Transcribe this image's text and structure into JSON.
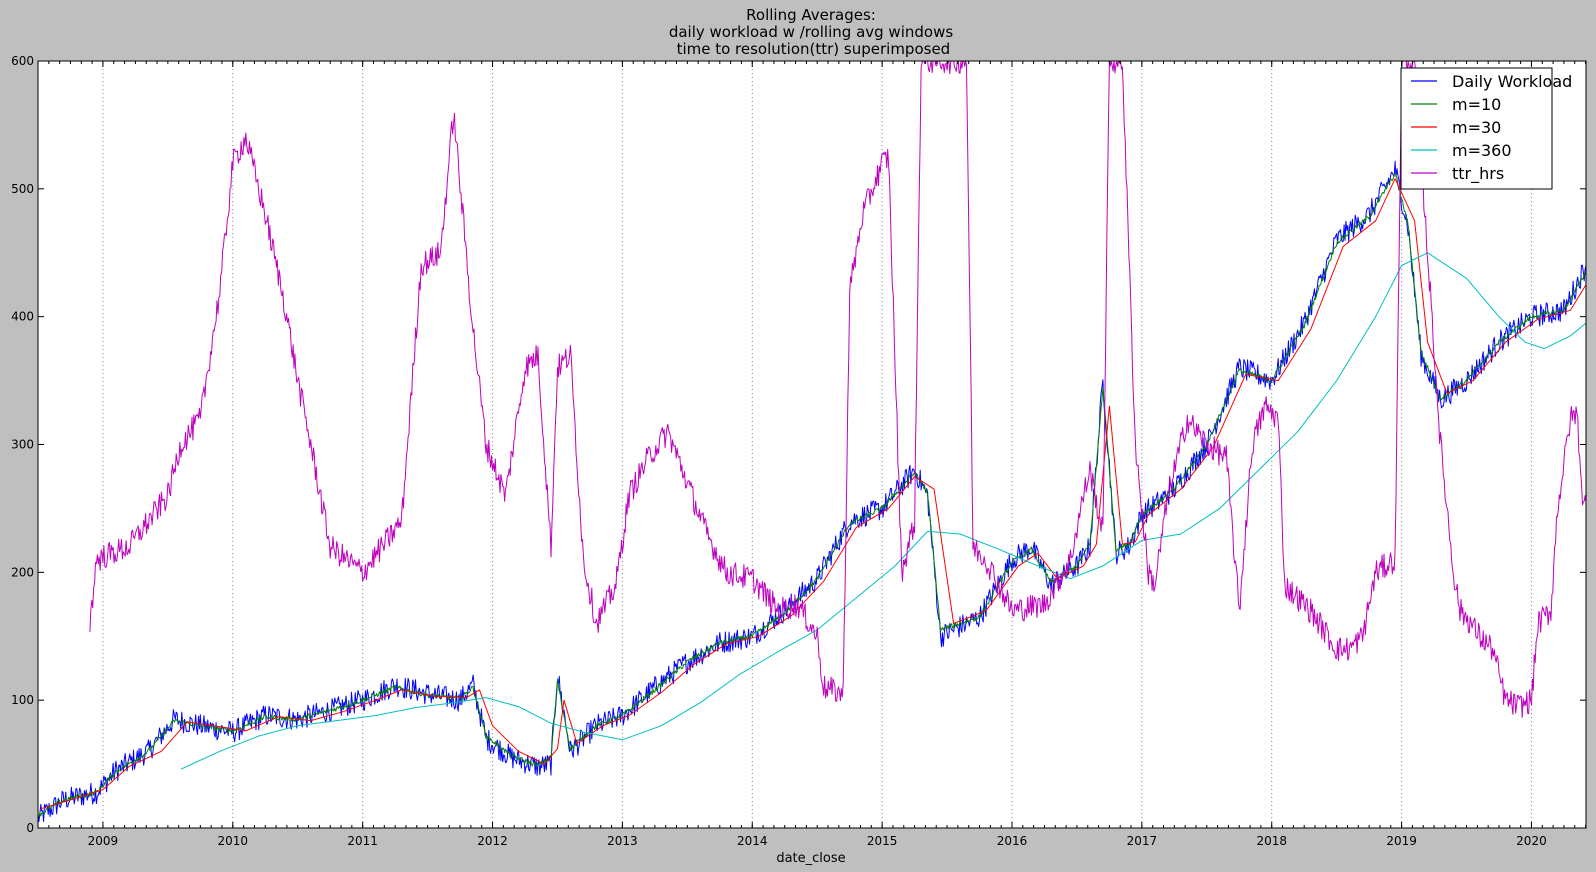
{
  "chart_data": {
    "type": "line",
    "title_lines": [
      "Rolling Averages:",
      "daily workload w /rolling avg windows",
      " time to resolution(ttr) superimposed"
    ],
    "xlabel": "date_close",
    "ylabel": "",
    "xlim": [
      2008.5,
      2020.42
    ],
    "ylim": [
      0,
      600
    ],
    "x_ticks": [
      2009,
      2010,
      2011,
      2012,
      2013,
      2014,
      2015,
      2016,
      2017,
      2018,
      2019,
      2020
    ],
    "x_tick_labels": [
      "2009",
      "2010",
      "2011",
      "2012",
      "2013",
      "2014",
      "2015",
      "2016",
      "2017",
      "2018",
      "2019",
      "2020"
    ],
    "y_ticks": [
      0,
      100,
      200,
      300,
      400,
      500,
      600
    ],
    "y_tick_labels": [
      "0",
      "100",
      "200",
      "300",
      "400",
      "500",
      "600"
    ],
    "grid": "vertical-dotted",
    "legend_position": "top-right",
    "series": [
      {
        "name": "Daily Workload",
        "color": "#0000ff",
        "noise": 9,
        "x": [
          2008.5,
          2008.7,
          2008.95,
          2009.1,
          2009.35,
          2009.55,
          2009.75,
          2010.0,
          2010.25,
          2010.5,
          2010.75,
          2011.0,
          2011.25,
          2011.5,
          2011.75,
          2011.85,
          2011.95,
          2012.15,
          2012.35,
          2012.45,
          2012.5,
          2012.6,
          2012.8,
          2013.0,
          2013.25,
          2013.5,
          2013.75,
          2014.0,
          2014.25,
          2014.5,
          2014.75,
          2015.0,
          2015.25,
          2015.35,
          2015.45,
          2015.75,
          2016.0,
          2016.15,
          2016.3,
          2016.5,
          2016.6,
          2016.7,
          2016.8,
          2016.9,
          2017.0,
          2017.25,
          2017.5,
          2017.75,
          2018.0,
          2018.25,
          2018.5,
          2018.75,
          2018.95,
          2019.05,
          2019.15,
          2019.3,
          2019.5,
          2019.75,
          2020.0,
          2020.25,
          2020.42
        ],
        "y": [
          8,
          22,
          28,
          45,
          60,
          85,
          80,
          75,
          88,
          85,
          92,
          100,
          112,
          105,
          100,
          112,
          70,
          55,
          48,
          50,
          120,
          60,
          80,
          88,
          110,
          130,
          145,
          150,
          170,
          195,
          240,
          250,
          280,
          260,
          150,
          165,
          210,
          220,
          190,
          205,
          220,
          350,
          215,
          220,
          245,
          265,
          300,
          360,
          350,
          395,
          460,
          480,
          515,
          470,
          370,
          335,
          350,
          380,
          400,
          405,
          440
        ]
      },
      {
        "name": "m=10",
        "color": "#008000",
        "noise": 2,
        "x": [
          2008.5,
          2008.7,
          2008.95,
          2009.1,
          2009.35,
          2009.55,
          2009.75,
          2010.0,
          2010.25,
          2010.5,
          2010.75,
          2011.0,
          2011.25,
          2011.5,
          2011.75,
          2011.85,
          2011.95,
          2012.15,
          2012.35,
          2012.45,
          2012.5,
          2012.6,
          2012.8,
          2013.0,
          2013.25,
          2013.5,
          2013.75,
          2014.0,
          2014.25,
          2014.5,
          2014.75,
          2015.0,
          2015.25,
          2015.35,
          2015.45,
          2015.75,
          2016.0,
          2016.15,
          2016.3,
          2016.5,
          2016.6,
          2016.7,
          2016.8,
          2016.9,
          2017.0,
          2017.25,
          2017.5,
          2017.75,
          2018.0,
          2018.25,
          2018.5,
          2018.75,
          2018.95,
          2019.05,
          2019.15,
          2019.3,
          2019.5,
          2019.75,
          2020.0,
          2020.25,
          2020.42
        ],
        "y": [
          10,
          22,
          28,
          44,
          60,
          84,
          80,
          76,
          87,
          85,
          92,
          100,
          110,
          104,
          101,
          110,
          72,
          56,
          49,
          55,
          115,
          62,
          80,
          88,
          108,
          130,
          145,
          150,
          168,
          195,
          238,
          250,
          278,
          262,
          155,
          165,
          208,
          218,
          192,
          205,
          222,
          345,
          218,
          222,
          245,
          265,
          300,
          358,
          350,
          393,
          458,
          478,
          512,
          472,
          372,
          336,
          350,
          380,
          400,
          405,
          435
        ]
      },
      {
        "name": "m=30",
        "color": "#ff0000",
        "noise": 0,
        "x": [
          2008.52,
          2008.75,
          2009.0,
          2009.2,
          2009.45,
          2009.65,
          2009.85,
          2010.1,
          2010.35,
          2010.6,
          2010.85,
          2011.1,
          2011.3,
          2011.55,
          2011.8,
          2011.9,
          2012.0,
          2012.2,
          2012.4,
          2012.5,
          2012.55,
          2012.65,
          2012.85,
          2013.05,
          2013.3,
          2013.55,
          2013.8,
          2014.05,
          2014.3,
          2014.55,
          2014.8,
          2015.05,
          2015.25,
          2015.4,
          2015.55,
          2015.8,
          2016.05,
          2016.2,
          2016.35,
          2016.55,
          2016.65,
          2016.75,
          2016.85,
          2016.95,
          2017.05,
          2017.3,
          2017.55,
          2017.8,
          2018.05,
          2018.3,
          2018.55,
          2018.8,
          2018.95,
          2019.1,
          2019.2,
          2019.35,
          2019.55,
          2019.8,
          2020.05,
          2020.3,
          2020.42
        ],
        "y": [
          15,
          22,
          30,
          48,
          60,
          83,
          80,
          76,
          87,
          84,
          91,
          100,
          108,
          103,
          102,
          108,
          80,
          60,
          50,
          62,
          100,
          66,
          80,
          88,
          106,
          128,
          144,
          150,
          166,
          193,
          235,
          250,
          275,
          265,
          160,
          170,
          205,
          215,
          195,
          205,
          222,
          330,
          222,
          224,
          245,
          265,
          298,
          355,
          350,
          390,
          455,
          475,
          508,
          475,
          380,
          340,
          350,
          380,
          398,
          405,
          425
        ]
      },
      {
        "name": "m=360",
        "color": "#00bfbf",
        "noise": 0,
        "x": [
          2009.6,
          2009.9,
          2010.2,
          2010.5,
          2010.8,
          2011.1,
          2011.4,
          2011.7,
          2011.95,
          2012.2,
          2012.45,
          2012.7,
          2013.0,
          2013.3,
          2013.6,
          2013.9,
          2014.2,
          2014.5,
          2014.8,
          2015.1,
          2015.35,
          2015.6,
          2015.9,
          2016.2,
          2016.45,
          2016.7,
          2017.0,
          2017.3,
          2017.6,
          2017.9,
          2018.2,
          2018.5,
          2018.8,
          2019.0,
          2019.2,
          2019.5,
          2019.75,
          2019.95,
          2020.1,
          2020.3,
          2020.42
        ],
        "y": [
          46,
          60,
          72,
          80,
          84,
          88,
          94,
          98,
          102,
          95,
          82,
          75,
          69,
          80,
          98,
          120,
          138,
          155,
          180,
          205,
          232,
          230,
          218,
          205,
          195,
          205,
          225,
          230,
          250,
          280,
          310,
          350,
          400,
          440,
          450,
          430,
          400,
          380,
          375,
          385,
          395
        ]
      },
      {
        "name": "ttr_hrs",
        "color": "#bf00bf",
        "noise": 10,
        "x": [
          2008.9,
          2008.95,
          2009.2,
          2009.35,
          2009.5,
          2009.6,
          2009.75,
          2009.9,
          2010.0,
          2010.1,
          2010.25,
          2010.4,
          2010.5,
          2010.6,
          2010.75,
          2011.0,
          2011.15,
          2011.3,
          2011.45,
          2011.6,
          2011.7,
          2011.85,
          2011.95,
          2012.1,
          2012.25,
          2012.35,
          2012.45,
          2012.5,
          2012.6,
          2012.7,
          2012.8,
          2012.95,
          2013.05,
          2013.2,
          2013.35,
          2013.5,
          2013.65,
          2013.8,
          2014.0,
          2014.2,
          2014.35,
          2014.5,
          2014.55,
          2014.7,
          2014.75,
          2014.85,
          2015.0,
          2015.05,
          2015.15,
          2015.25,
          2015.3,
          2015.45,
          2015.65,
          2015.7,
          2015.8,
          2016.0,
          2016.25,
          2016.45,
          2016.55,
          2016.6,
          2016.7,
          2016.75,
          2016.85,
          2016.95,
          2017.05,
          2017.1,
          2017.2,
          2017.35,
          2017.5,
          2017.65,
          2017.75,
          2017.85,
          2017.95,
          2018.05,
          2018.1,
          2018.3,
          2018.5,
          2018.6,
          2018.7,
          2018.8,
          2018.95,
          2019.0,
          2019.1,
          2019.3,
          2019.4,
          2019.45,
          2019.5,
          2019.6,
          2019.7,
          2019.8,
          2019.9,
          2020.0,
          2020.05,
          2020.15,
          2020.2,
          2020.3,
          2020.35,
          2020.4,
          2020.42
        ],
        "y": [
          160,
          210,
          220,
          240,
          260,
          300,
          320,
          420,
          520,
          540,
          480,
          410,
          350,
          300,
          220,
          200,
          220,
          240,
          440,
          450,
          560,
          390,
          300,
          260,
          360,
          370,
          220,
          360,
          370,
          210,
          160,
          190,
          260,
          290,
          310,
          270,
          230,
          200,
          195,
          170,
          175,
          150,
          110,
          105,
          420,
          480,
          520,
          525,
          200,
          240,
          600,
          600,
          600,
          220,
          210,
          170,
          175,
          210,
          260,
          280,
          230,
          600,
          600,
          300,
          200,
          190,
          260,
          320,
          300,
          290,
          170,
          300,
          330,
          320,
          190,
          170,
          140,
          140,
          150,
          200,
          210,
          600,
          600,
          300,
          200,
          170,
          165,
          150,
          140,
          100,
          95,
          100,
          160,
          170,
          250,
          320,
          325,
          250,
          255
        ]
      }
    ]
  }
}
